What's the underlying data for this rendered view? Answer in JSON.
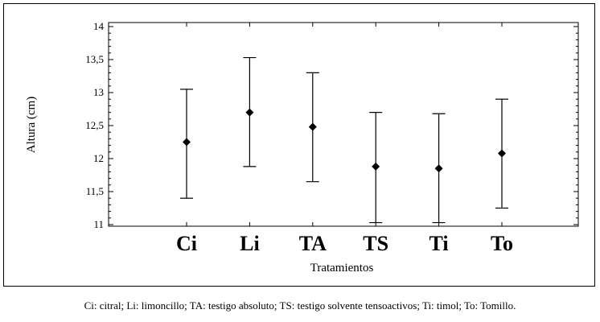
{
  "chart_data": {
    "type": "scatter",
    "title": "",
    "xlabel": "Tratamientos",
    "ylabel": "Altura (cm)",
    "categories": [
      "Ci",
      "Li",
      "TA",
      "TS",
      "Ti",
      "To"
    ],
    "series": [
      {
        "values": [
          12.25,
          12.7,
          12.48,
          11.88,
          11.85,
          12.08
        ],
        "lower": [
          11.4,
          11.88,
          11.65,
          11.03,
          11.03,
          11.25
        ],
        "upper": [
          13.05,
          13.53,
          13.3,
          12.7,
          12.68,
          12.9
        ]
      }
    ],
    "ylim": [
      11,
      14
    ],
    "yticks": [
      "11",
      "11,5",
      "12",
      "12,5",
      "13",
      "13,5",
      "14"
    ],
    "ytick_values": [
      11,
      11.5,
      12,
      12.5,
      13,
      13.5,
      14
    ],
    "grid": false,
    "marker_color": "#000000"
  },
  "caption": "Ci: citral; Li: limoncillo; TA: testigo absoluto; TS: testigo solvente tensoactivos; Ti: timol; To: Tomillo."
}
